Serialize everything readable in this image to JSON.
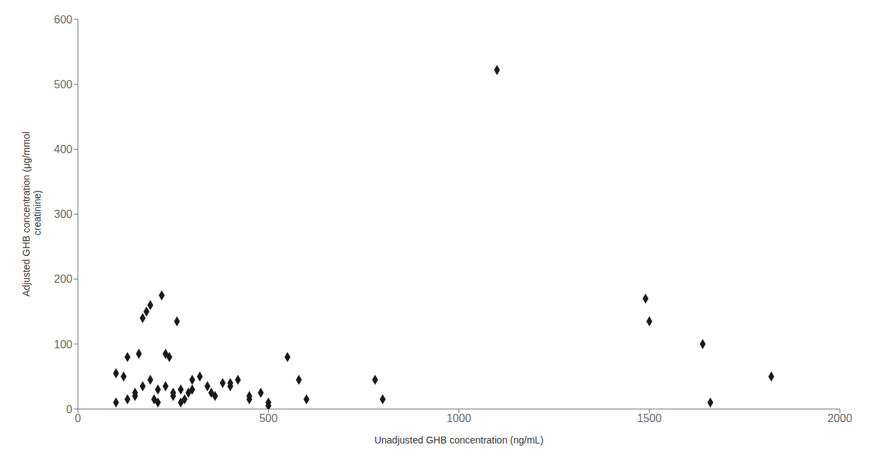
{
  "chart_data": {
    "type": "scatter",
    "x": [
      100,
      120,
      130,
      150,
      160,
      170,
      180,
      190,
      200,
      210,
      220,
      230,
      240,
      250,
      260,
      270,
      280,
      290,
      100,
      130,
      150,
      170,
      190,
      210,
      230,
      250,
      270,
      300,
      320,
      340,
      360,
      380,
      400,
      420,
      450,
      480,
      500,
      300,
      350,
      400,
      450,
      500,
      550,
      580,
      600,
      780,
      800,
      1100,
      1490,
      1500,
      1640,
      1660,
      1820
    ],
    "values": [
      55,
      50,
      80,
      20,
      85,
      140,
      150,
      160,
      15,
      10,
      175,
      85,
      80,
      20,
      135,
      10,
      15,
      25,
      10,
      15,
      25,
      35,
      45,
      30,
      35,
      25,
      30,
      45,
      50,
      35,
      20,
      40,
      35,
      45,
      20,
      25,
      5,
      30,
      25,
      40,
      15,
      10,
      80,
      45,
      15,
      45,
      15,
      522,
      170,
      135,
      100,
      10,
      50
    ],
    "marker": "diamond",
    "color": "#1a1a1a",
    "xlabel": "Unadjusted GHB concentration (ng/mL)",
    "ylabel": "Adjusted GHB concentration (μg/mmol\n creatinine)",
    "xlim": [
      0,
      2000
    ],
    "ylim": [
      0,
      600
    ],
    "xticks": [
      0,
      500,
      1000,
      1500,
      2000
    ],
    "yticks": [
      0,
      100,
      200,
      300,
      400,
      500,
      600
    ],
    "grid": false
  }
}
